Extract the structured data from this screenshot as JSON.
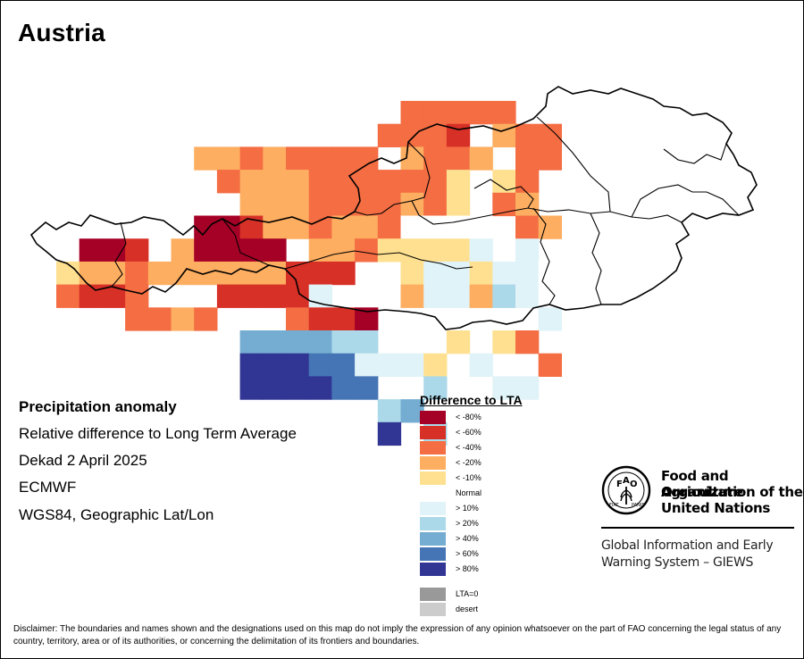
{
  "map": {
    "title": "Austria",
    "info": {
      "heading": "Precipitation anomaly",
      "line1": "Relative difference to Long Term Average",
      "line2": "Dekad 2 April 2025",
      "line3": "ECMWF",
      "line4": "WGS84, Geographic Lat/Lon"
    },
    "legend": {
      "title": "Difference to LTA",
      "items": [
        {
          "label": "< -80%",
          "color": "#a50026"
        },
        {
          "label": "< -60%",
          "color": "#d73027"
        },
        {
          "label": "< -40%",
          "color": "#f46d43"
        },
        {
          "label": "< -20%",
          "color": "#fdae61"
        },
        {
          "label": "< -10%",
          "color": "#fee090"
        },
        {
          "label": "Normal",
          "color": "#ffffff"
        },
        {
          "label": "> 10%",
          "color": "#e0f3f8"
        },
        {
          "label": "> 20%",
          "color": "#abd9e9"
        },
        {
          "label": "> 40%",
          "color": "#74add1"
        },
        {
          "label": "> 60%",
          "color": "#4575b4"
        },
        {
          "label": "> 80%",
          "color": "#313695"
        },
        {
          "label": "LTA=0",
          "color": "#999999"
        },
        {
          "label": "desert",
          "color": "#cccccc"
        }
      ]
    },
    "grid": {
      "rows": [
        "...............ccccc..",
        "..............cccb.dcc",
        "......ddcdcccc.dccd.cc",
        ".......cdddcccccce.ec.",
        "........dddccccdce.cd.",
        "......aabddcddcffff.cd",
        ".aab.daaaa.ddceeeeg.g",
        "eddcddddddbbb..eggeggf",
        "cbbc...bbbbg...dggdhgf",
        "...ccdc...cbba.......g",
        "........iiiihh...e.ec.",
        "........kkkjjggge.g..c",
        "........kkkkjj..h..gg.",
        "..............hi......",
        "..............k.h....."
      ]
    },
    "org": {
      "logo_letters": "FAO",
      "logo_motto": "FIAT PANIS",
      "name1": "Food and Agriculture",
      "name2": "Organization of the",
      "name3": "United Nations",
      "giews1": "Global Information and Early",
      "giews2": "Warning System – GIEWS"
    },
    "disclaimer": "Disclaimer: The boundaries and names shown and the designations used on this map do not imply the expression of any opinion whatsoever on the part of FAO concerning the legal status of any country, territory, area or of its authorities, or concerning the delimitation of its frontiers and boundaries."
  }
}
